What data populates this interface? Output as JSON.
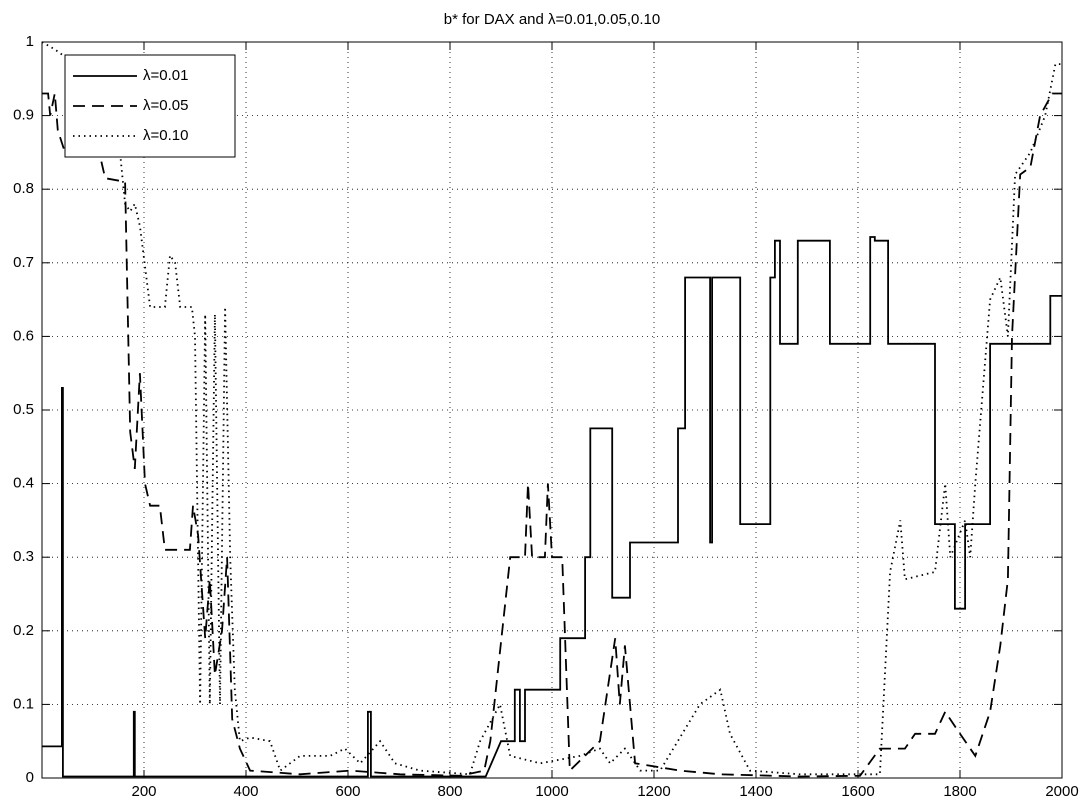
{
  "chart_data": {
    "type": "line",
    "title": "b* for DAX and λ=0.01,0.05,0.10",
    "xlim": [
      0,
      2000
    ],
    "xticks": [
      200,
      400,
      600,
      800,
      1000,
      1200,
      1400,
      1600,
      1800,
      2000
    ],
    "ylim": [
      0,
      1
    ],
    "yticks": [
      0,
      0.1,
      0.2,
      0.3,
      0.4,
      0.5,
      0.6,
      0.7,
      0.8,
      0.9,
      1
    ],
    "grid": true,
    "legend": "upper left",
    "series": [
      {
        "name": "λ=0.01",
        "color": "#000000",
        "dash": "solid",
        "x": [
          0,
          39,
          39,
          41,
          41,
          180,
          180,
          182,
          182,
          639,
          639,
          645,
          645,
          870,
          900,
          927,
          927,
          937,
          937,
          947,
          947,
          1016,
          1016,
          1065,
          1065,
          1075,
          1075,
          1118,
          1118,
          1153,
          1153,
          1247,
          1247,
          1261,
          1261,
          1310,
          1310,
          1314,
          1314,
          1369,
          1369,
          1428,
          1428,
          1437,
          1437,
          1447,
          1447,
          1482,
          1482,
          1545,
          1545,
          1624,
          1624,
          1633,
          1633,
          1659,
          1659,
          1751,
          1751,
          1790,
          1790,
          1810,
          1810,
          1859,
          1859,
          1977,
          1977,
          2000
        ],
        "values": [
          0.043,
          0.043,
          0.53,
          0.53,
          0.002,
          0.002,
          0.09,
          0.09,
          0.002,
          0.002,
          0.09,
          0.09,
          0.002,
          0.002,
          0.05,
          0.05,
          0.12,
          0.12,
          0.05,
          0.05,
          0.12,
          0.12,
          0.19,
          0.19,
          0.3,
          0.3,
          0.475,
          0.475,
          0.245,
          0.245,
          0.32,
          0.32,
          0.475,
          0.475,
          0.68,
          0.68,
          0.32,
          0.32,
          0.68,
          0.68,
          0.345,
          0.345,
          0.68,
          0.68,
          0.73,
          0.73,
          0.59,
          0.59,
          0.73,
          0.73,
          0.59,
          0.59,
          0.735,
          0.735,
          0.73,
          0.73,
          0.59,
          0.59,
          0.345,
          0.345,
          0.23,
          0.23,
          0.345,
          0.345,
          0.59,
          0.59,
          0.655,
          0.655
        ]
      },
      {
        "name": "λ=0.05",
        "color": "#000000",
        "dash": "dashed",
        "x": [
          0,
          12,
          16,
          25,
          31,
          45,
          114,
          124,
          163,
          173,
          182,
          192,
          202,
          212,
          231,
          241,
          290,
          296,
          306,
          320,
          329,
          339,
          353,
          363,
          373,
          388,
          408,
          506,
          604,
          702,
          820,
          867,
          879,
          918,
          947,
          953,
          961,
          986,
          992,
          1000,
          1020,
          1035,
          1094,
          1124,
          1133,
          1143,
          1163,
          1251,
          1330,
          1486,
          1604,
          1643,
          1692,
          1712,
          1751,
          1771,
          1800,
          1830,
          1859,
          1879,
          1894,
          1902,
          1918,
          1938,
          1957,
          1981,
          2000
        ],
        "values": [
          0.93,
          0.93,
          0.9,
          0.93,
          0.88,
          0.85,
          0.845,
          0.815,
          0.81,
          0.47,
          0.42,
          0.55,
          0.4,
          0.37,
          0.37,
          0.31,
          0.31,
          0.37,
          0.33,
          0.19,
          0.27,
          0.14,
          0.2,
          0.3,
          0.08,
          0.04,
          0.01,
          0.005,
          0.01,
          0.005,
          0.003,
          0.01,
          0.05,
          0.3,
          0.3,
          0.4,
          0.3,
          0.3,
          0.4,
          0.3,
          0.3,
          0.01,
          0.05,
          0.19,
          0.1,
          0.18,
          0.02,
          0.01,
          0.005,
          0.002,
          0.003,
          0.04,
          0.04,
          0.06,
          0.06,
          0.09,
          0.06,
          0.03,
          0.09,
          0.18,
          0.27,
          0.6,
          0.82,
          0.83,
          0.9,
          0.93,
          0.93
        ]
      },
      {
        "name": "λ=0.10",
        "color": "#000000",
        "dash": "dotted",
        "x": [
          0,
          25,
          45,
          94,
          114,
          133,
          153,
          163,
          173,
          182,
          192,
          212,
          241,
          251,
          261,
          271,
          294,
          300,
          310,
          320,
          329,
          339,
          349,
          359,
          369,
          378,
          388,
          408,
          447,
          467,
          506,
          565,
          594,
          624,
          663,
          692,
          741,
          839,
          859,
          898,
          918,
          977,
          1055,
          1094,
          1114,
          1143,
          1173,
          1212,
          1290,
          1330,
          1349,
          1388,
          1486,
          1643,
          1663,
          1683,
          1692,
          1751,
          1771,
          1781,
          1810,
          1820,
          1830,
          1859,
          1879,
          1894,
          1908,
          1938,
          1967,
          1987,
          2000
        ],
        "values": [
          1.0,
          0.99,
          0.98,
          0.97,
          0.94,
          0.88,
          0.85,
          0.78,
          0.77,
          0.78,
          0.75,
          0.64,
          0.64,
          0.71,
          0.7,
          0.64,
          0.64,
          0.6,
          0.1,
          0.63,
          0.1,
          0.63,
          0.1,
          0.64,
          0.3,
          0.12,
          0.05,
          0.055,
          0.05,
          0.01,
          0.03,
          0.03,
          0.04,
          0.02,
          0.05,
          0.02,
          0.01,
          0.005,
          0.05,
          0.1,
          0.03,
          0.02,
          0.03,
          0.04,
          0.02,
          0.04,
          0.01,
          0.01,
          0.1,
          0.12,
          0.06,
          0.01,
          0.005,
          0.005,
          0.28,
          0.35,
          0.27,
          0.28,
          0.4,
          0.3,
          0.35,
          0.3,
          0.4,
          0.65,
          0.68,
          0.6,
          0.82,
          0.85,
          0.9,
          0.97,
          0.97
        ]
      }
    ]
  }
}
